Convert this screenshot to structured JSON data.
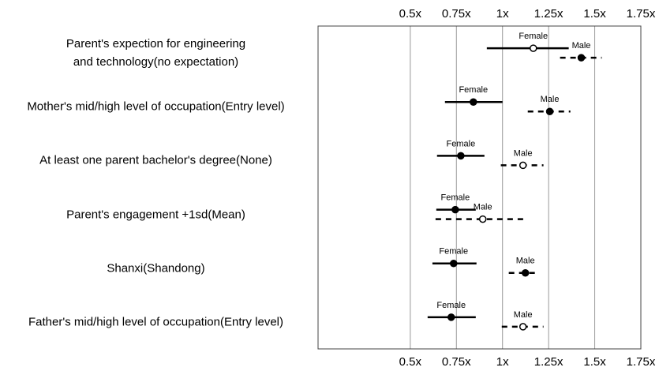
{
  "chart_data": {
    "type": "forest",
    "categories": [
      "Parent's expection for engineering\nand technology(no expectation)",
      "Mother's mid/high level of occupation(Entry level)",
      "At least one parent bachelor's degree(None)",
      "Parent's engagement +1sd(Mean)",
      "Shanxi(Shandong)",
      "Father's mid/high level of occupation(Entry level)"
    ],
    "series": [
      {
        "name": "Female",
        "color": "#000000",
        "dash": false,
        "values": [
          1.167,
          0.842,
          0.774,
          0.744,
          0.735,
          0.722
        ],
        "lower": [
          0.915,
          0.688,
          0.645,
          0.641,
          0.62,
          0.594
        ],
        "upper": [
          1.359,
          1.0,
          0.902,
          0.855,
          0.859,
          0.855
        ],
        "filled": [
          false,
          true,
          true,
          true,
          true,
          true
        ]
      },
      {
        "name": "Male",
        "color": "#000000",
        "dash": true,
        "values": [
          1.427,
          1.256,
          1.111,
          0.893,
          1.124,
          1.111
        ],
        "lower": [
          1.312,
          1.137,
          0.991,
          0.637,
          1.034,
          0.996
        ],
        "upper": [
          1.538,
          1.368,
          1.222,
          1.115,
          1.192,
          1.222
        ],
        "filled": [
          true,
          true,
          false,
          false,
          true,
          false
        ]
      }
    ],
    "xlim": [
      0,
      1.75
    ],
    "xticks": [
      {
        "value": 0.5,
        "label": "0.5x"
      },
      {
        "value": 0.75,
        "label": "0.75x"
      },
      {
        "value": 1,
        "label": "1x"
      },
      {
        "value": 1.25,
        "label": "1.25x"
      },
      {
        "value": 1.5,
        "label": "1.5x"
      },
      {
        "value": 1.75,
        "label": "1.75x"
      }
    ],
    "grid": true
  }
}
